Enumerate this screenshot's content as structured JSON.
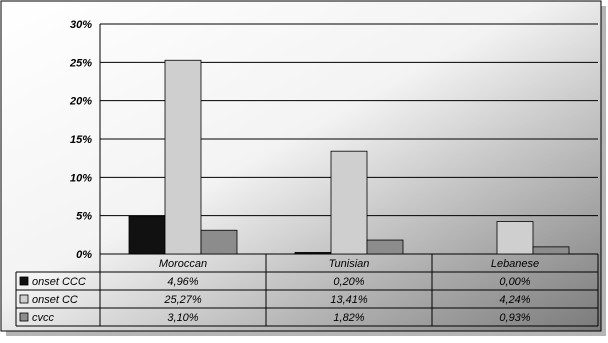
{
  "chart_data": {
    "type": "bar",
    "categories": [
      "Moroccan",
      "Tunisian",
      "Lebanese"
    ],
    "series": [
      {
        "name": "onset CCC",
        "color": "#111111",
        "values": [
          4.96,
          0.2,
          0.0
        ],
        "labels": [
          "4,96%",
          "0,20%",
          "0,00%"
        ]
      },
      {
        "name": "onset CC",
        "color": "#cfcfcf",
        "values": [
          25.27,
          13.41,
          4.24
        ],
        "labels": [
          "25,27%",
          "13,41%",
          "4,24%"
        ]
      },
      {
        "name": "cvcc",
        "color": "#8c8c8c",
        "values": [
          3.1,
          1.82,
          0.93
        ],
        "labels": [
          "3,10%",
          "1,82%",
          "0,93%"
        ]
      }
    ],
    "ylim": [
      0,
      30
    ],
    "yticks": [
      0,
      5,
      10,
      15,
      20,
      25,
      30
    ],
    "ytick_labels": [
      "0%",
      "5%",
      "10%",
      "15%",
      "20%",
      "25%",
      "30%"
    ],
    "grid": true,
    "legend": "table-left",
    "background": "gradient-white-to-gray"
  }
}
